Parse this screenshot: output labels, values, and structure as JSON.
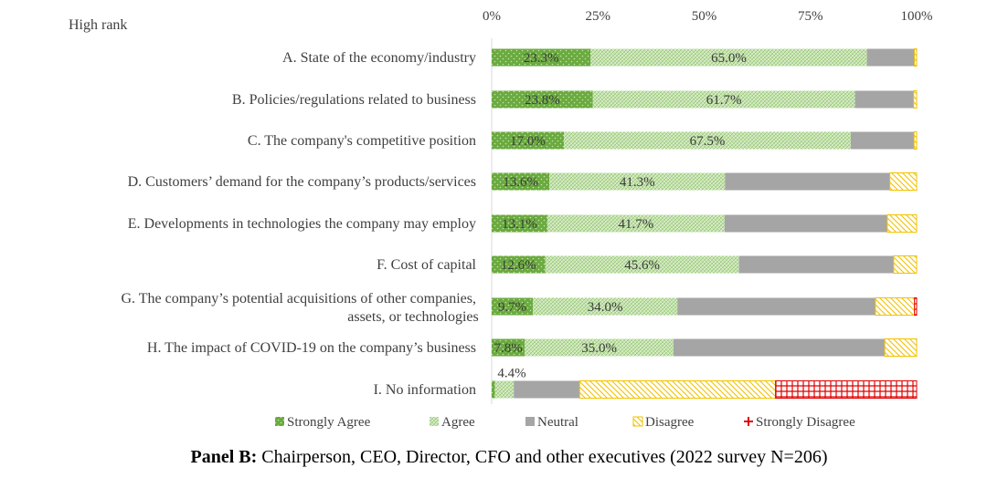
{
  "chart_data": {
    "type": "bar",
    "orientation": "horizontal",
    "stacked": true,
    "corner_label": "High rank",
    "x_ticks": [
      "0%",
      "25%",
      "50%",
      "75%",
      "100%"
    ],
    "xlim": [
      0,
      100
    ],
    "categories": [
      [
        "A. State of the economy/industry"
      ],
      [
        "B. Policies/regulations related to business"
      ],
      [
        "C. The company's competitive position"
      ],
      [
        "D. Customers’ demand for the company’s products/services"
      ],
      [
        "E. Developments in technologies the company may employ"
      ],
      [
        "F. Cost of capital"
      ],
      [
        "G. The company’s potential acquisitions of other companies,",
        "assets, or technologies"
      ],
      [
        "H. The impact of COVID-19 on the company’s business"
      ],
      [
        "I. No information"
      ]
    ],
    "series": [
      {
        "name": "Strongly Agree",
        "color": "#6aaa3f",
        "pattern": "dots",
        "values": [
          23.3,
          23.8,
          17.0,
          13.6,
          13.1,
          12.6,
          9.7,
          7.8,
          0.8
        ],
        "labels": [
          "23.3%",
          "23.8%",
          "17.0%",
          "13.6%",
          "13.1%",
          "12.6%",
          "9.7%",
          "7.8%",
          ""
        ]
      },
      {
        "name": "Agree",
        "color": "#a9d18e",
        "pattern": "hatch",
        "values": [
          65.0,
          61.7,
          67.5,
          41.3,
          41.7,
          45.6,
          34.0,
          35.0,
          4.4
        ],
        "labels": [
          "65.0%",
          "61.7%",
          "67.5%",
          "41.3%",
          "41.7%",
          "45.6%",
          "34.0%",
          "35.0%",
          "4.4%"
        ]
      },
      {
        "name": "Neutral",
        "color": "#a5a5a5",
        "pattern": "solid",
        "values": [
          11.2,
          13.8,
          14.9,
          38.8,
          38.3,
          36.4,
          46.6,
          49.7,
          15.5
        ]
      },
      {
        "name": "Disagree",
        "color": "#f2c200",
        "pattern": "diag",
        "values": [
          0.5,
          0.7,
          0.6,
          6.3,
          6.9,
          5.4,
          9.2,
          7.5,
          46.1
        ]
      },
      {
        "name": "Strongly Disagree",
        "color": "#e00000",
        "pattern": "grid",
        "values": [
          0,
          0,
          0,
          0,
          0,
          0,
          0.5,
          0,
          33.2
        ]
      }
    ],
    "caption_bold": "Panel B:",
    "caption_rest": " Chairperson, CEO, Director, CFO and other executives (2022 survey N=206)"
  }
}
